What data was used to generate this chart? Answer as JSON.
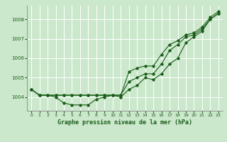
{
  "background_color": "#cce8cc",
  "plot_bg_color": "#cce8cc",
  "grid_color": "#ffffff",
  "line_color": "#1a5c1a",
  "title": "Graphe pression niveau de la mer (hPa)",
  "x_ticks": [
    0,
    1,
    2,
    3,
    4,
    5,
    6,
    7,
    8,
    9,
    10,
    11,
    12,
    13,
    14,
    15,
    16,
    17,
    18,
    19,
    20,
    21,
    22,
    23
  ],
  "ylim": [
    1003.3,
    1008.7
  ],
  "xlim": [
    -0.5,
    23.5
  ],
  "yticks": [
    1004,
    1005,
    1006,
    1007,
    1008
  ],
  "series1": [
    1004.4,
    1004.1,
    1004.1,
    1004.0,
    1003.7,
    1003.6,
    1003.6,
    1003.6,
    1003.9,
    1004.0,
    1004.1,
    1004.0,
    1004.4,
    1004.6,
    1005.0,
    1004.9,
    1005.2,
    1005.7,
    1006.0,
    1006.8,
    1007.1,
    1007.4,
    1008.0,
    1008.3
  ],
  "series2": [
    1004.4,
    1004.1,
    1004.1,
    1004.1,
    1004.1,
    1004.1,
    1004.1,
    1004.1,
    1004.1,
    1004.1,
    1004.1,
    1004.1,
    1004.8,
    1005.0,
    1005.2,
    1005.2,
    1005.7,
    1006.4,
    1006.7,
    1007.1,
    1007.2,
    1007.5,
    1008.0,
    1008.3
  ],
  "series3": [
    1004.4,
    1004.1,
    1004.1,
    1004.1,
    1004.1,
    1004.1,
    1004.1,
    1004.1,
    1004.1,
    1004.1,
    1004.1,
    1004.1,
    1005.3,
    1005.5,
    1005.6,
    1005.6,
    1006.2,
    1006.7,
    1006.9,
    1007.2,
    1007.3,
    1007.6,
    1008.1,
    1008.4
  ]
}
